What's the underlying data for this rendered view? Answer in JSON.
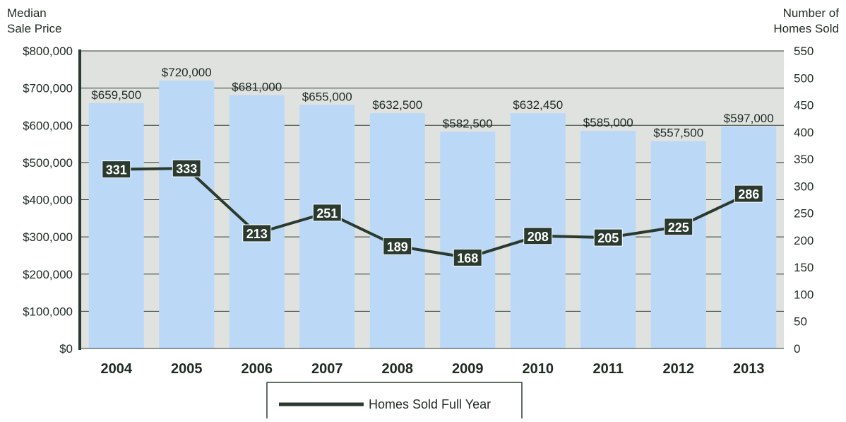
{
  "chart_data": {
    "type": "bar",
    "categories": [
      "2004",
      "2005",
      "2006",
      "2007",
      "2008",
      "2009",
      "2010",
      "2011",
      "2012",
      "2013"
    ],
    "left_axis": {
      "label_lines": [
        "Median",
        "Sale Price"
      ],
      "ylim": [
        0,
        800000
      ],
      "ticks": [
        "$0",
        "$100,000",
        "$200,000",
        "$300,000",
        "$400,000",
        "$500,000",
        "$600,000",
        "$700,000",
        "$800,000"
      ]
    },
    "right_axis": {
      "label_lines": [
        "Number of",
        "Homes Sold"
      ],
      "ylim": [
        0,
        550
      ],
      "ticks": [
        "0",
        "50",
        "100",
        "150",
        "200",
        "250",
        "300",
        "350",
        "400",
        "450",
        "500",
        "550"
      ]
    },
    "series": [
      {
        "type": "bar",
        "axis": "left",
        "values": [
          659500,
          720000,
          681000,
          655000,
          632500,
          582500,
          632450,
          585000,
          557500,
          597000
        ],
        "labels": [
          "$659,500",
          "$720,000",
          "$681,000",
          "$655,000",
          "$632,500",
          "$582,500",
          "$632,450",
          "$585,000",
          "$557,500",
          "$597,000"
        ]
      },
      {
        "type": "line",
        "axis": "right",
        "name": "Homes Sold Full Year",
        "values": [
          331,
          333,
          213,
          251,
          189,
          168,
          208,
          205,
          225,
          286
        ],
        "labels": [
          "331",
          "333",
          "213",
          "251",
          "189",
          "168",
          "208",
          "205",
          "225",
          "286"
        ]
      }
    ],
    "legend": {
      "position": "bottom-center",
      "entries": [
        "Homes Sold Full Year"
      ]
    },
    "grid": true,
    "colors": {
      "bar": "#bcd8f7",
      "plot_bg": "#dfe2df",
      "line": "#2b3a2e",
      "label_bg": "#2b3a2e",
      "label_text": "#ffffff",
      "axis": "#2b3a2e"
    }
  }
}
